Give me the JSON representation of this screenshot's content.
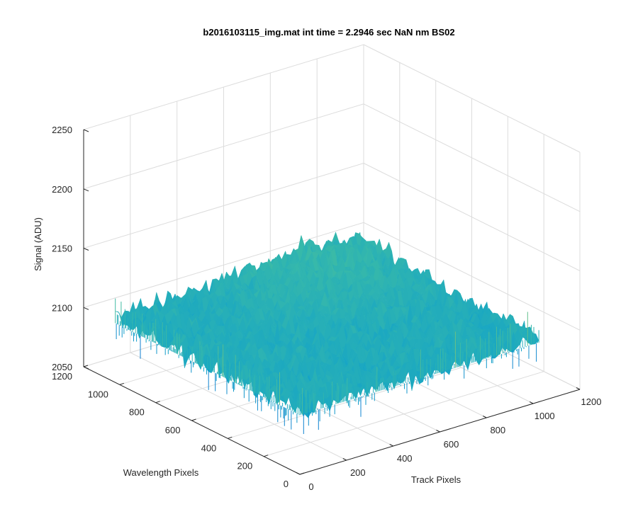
{
  "chart_data": {
    "type": "surface3d",
    "title": "b2016103115_img.mat int time = 2.2946 sec  NaN nm BS02",
    "xlabel": "Track Pixels",
    "ylabel": "Wavelength Pixels",
    "zlabel": "Signal (ADU)",
    "x_ticks": [
      0,
      200,
      400,
      600,
      800,
      1000,
      1200
    ],
    "y_ticks": [
      0,
      200,
      400,
      600,
      800,
      1000,
      1200
    ],
    "z_ticks": [
      2050,
      2100,
      2150,
      2200,
      2250
    ],
    "xlim": [
      0,
      1200
    ],
    "ylim": [
      0,
      1200
    ],
    "zlim": [
      2050,
      2250
    ],
    "x_extent": [
      0,
      1024
    ],
    "y_extent": [
      0,
      1024
    ],
    "signal_mean": 2105,
    "signal_noise_range": [
      2075,
      2140
    ],
    "grid": true,
    "colormap": "parula",
    "colors": {
      "surface_low": "#0d72d4",
      "surface_mid": "#13a3c8",
      "surface_high": "#8fc76a",
      "grid": "#dcdcdc",
      "axis": "#262626"
    }
  }
}
